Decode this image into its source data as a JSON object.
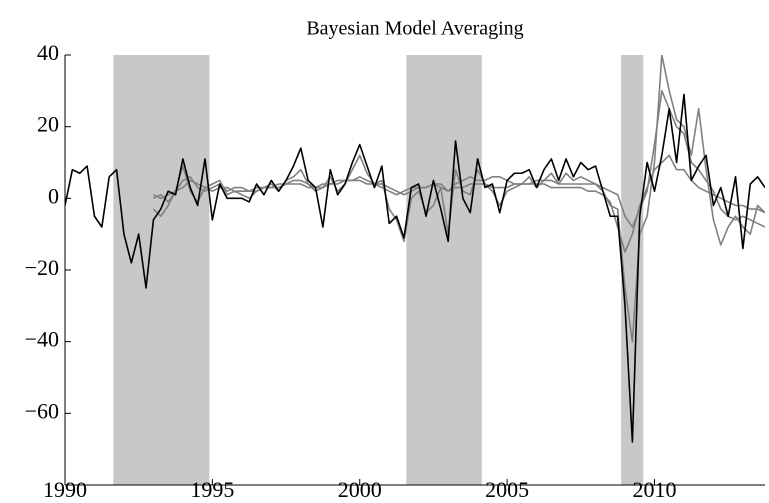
{
  "chart_data": {
    "type": "line",
    "title": "Bayesian Model Averaging",
    "x": [
      1990,
      1990.25,
      1990.5,
      1990.75,
      1991,
      1991.25,
      1991.5,
      1991.75,
      1992,
      1992.25,
      1992.5,
      1992.75,
      1993,
      1993.25,
      1993.5,
      1993.75,
      1994,
      1994.25,
      1994.5,
      1994.75,
      1995,
      1995.25,
      1995.5,
      1995.75,
      1996,
      1996.25,
      1996.5,
      1996.75,
      1997,
      1997.25,
      1997.5,
      1997.75,
      1998,
      1998.25,
      1998.5,
      1998.75,
      1999,
      1999.25,
      1999.5,
      1999.75,
      2000,
      2000.25,
      2000.5,
      2000.75,
      2001,
      2001.25,
      2001.5,
      2001.75,
      2002,
      2002.25,
      2002.5,
      2002.75,
      2003,
      2003.25,
      2003.5,
      2003.75,
      2004,
      2004.25,
      2004.5,
      2004.75,
      2005,
      2005.25,
      2005.5,
      2005.75,
      2006,
      2006.25,
      2006.5,
      2006.75,
      2007,
      2007.25,
      2007.5,
      2007.75,
      2008,
      2008.25,
      2008.5,
      2008.75,
      2009,
      2009.25,
      2009.5,
      2009.75,
      2010,
      2010.25,
      2010.5,
      2010.75,
      2011,
      2011.25,
      2011.5,
      2011.75,
      2012,
      2012.25,
      2012.5,
      2012.75,
      2013,
      2013.25,
      2013.5,
      2013.75
    ],
    "series": [
      {
        "color": "#808080",
        "values": [
          null,
          null,
          null,
          null,
          null,
          null,
          null,
          null,
          null,
          null,
          null,
          null,
          1,
          0,
          1,
          2,
          3,
          5,
          4,
          3,
          2,
          3,
          3,
          2,
          2,
          2,
          3,
          3,
          3,
          3,
          4,
          4,
          4,
          3,
          3,
          4,
          4,
          5,
          5,
          5,
          5,
          4,
          4,
          3,
          2,
          1,
          2,
          3,
          3,
          3,
          4,
          3,
          2,
          3,
          3,
          4,
          4,
          4,
          3,
          3,
          3,
          4,
          4,
          4,
          4,
          4,
          3,
          3,
          3,
          3,
          3,
          2,
          2,
          1,
          -1,
          -8,
          -15,
          -10,
          -2,
          3,
          8,
          10,
          12,
          8,
          8,
          5,
          3,
          2,
          1,
          0,
          -1,
          -2,
          -2,
          -3,
          -3,
          -4
        ]
      },
      {
        "color": "#808080",
        "values": [
          null,
          null,
          null,
          null,
          null,
          null,
          null,
          null,
          null,
          null,
          null,
          null,
          -3,
          -5,
          -2,
          2,
          9,
          2,
          -1,
          3,
          4,
          5,
          1,
          2,
          1,
          0,
          2,
          3,
          4,
          2,
          5,
          6,
          8,
          4,
          2,
          3,
          6,
          2,
          4,
          8,
          12,
          7,
          4,
          5,
          -3,
          -6,
          -12,
          0,
          2,
          -4,
          -2,
          3,
          -10,
          8,
          2,
          1,
          8,
          4,
          2,
          -2,
          2,
          3,
          4,
          6,
          3,
          5,
          7,
          4,
          7,
          5,
          6,
          5,
          4,
          2,
          -2,
          -3,
          -25,
          -40,
          -10,
          -5,
          10,
          40,
          30,
          22,
          20,
          12,
          25,
          8,
          -6,
          -13,
          -8,
          -5,
          -8,
          -10,
          -2,
          -4
        ]
      },
      {
        "color": "#808080",
        "values": [
          null,
          null,
          null,
          null,
          null,
          null,
          null,
          null,
          null,
          null,
          null,
          null,
          0,
          1,
          -1,
          2,
          5,
          6,
          3,
          2,
          3,
          4,
          2,
          3,
          3,
          2,
          2,
          3,
          3,
          4,
          4,
          5,
          5,
          4,
          3,
          3,
          4,
          4,
          5,
          5,
          6,
          5,
          4,
          4,
          3,
          2,
          1,
          2,
          3,
          3,
          4,
          4,
          2,
          4,
          5,
          6,
          5,
          5,
          6,
          6,
          5,
          4,
          4,
          4,
          5,
          5,
          5,
          4,
          4,
          4,
          4,
          4,
          4,
          3,
          2,
          1,
          -5,
          -8,
          -3,
          2,
          15,
          30,
          25,
          20,
          18,
          10,
          8,
          5,
          2,
          -3,
          -5,
          -6,
          -5,
          -6,
          -7,
          -8
        ]
      },
      {
        "color": "#000000",
        "values": [
          -2,
          8,
          7,
          9,
          -5,
          -8,
          6,
          8,
          -10,
          -18,
          -10,
          -25,
          -6,
          -3,
          2,
          1,
          11,
          3,
          -2,
          11,
          -6,
          4,
          0,
          0,
          0,
          -1,
          4,
          1,
          5,
          2,
          5,
          9,
          14,
          5,
          3,
          -8,
          8,
          1,
          4,
          10,
          15,
          9,
          3,
          9,
          -7,
          -5,
          -11,
          3,
          4,
          -5,
          5,
          -3,
          -12,
          16,
          0,
          -4,
          11,
          3,
          4,
          -4,
          5,
          7,
          7,
          8,
          3,
          8,
          11,
          5,
          11,
          6,
          10,
          8,
          9,
          2,
          -5,
          -5,
          -30,
          -68,
          -5,
          10,
          2,
          12,
          25,
          10,
          29,
          5,
          9,
          12,
          -2,
          3,
          -5,
          6,
          -14,
          4,
          6,
          3
        ]
      }
    ],
    "shaded_regions": [
      {
        "start": 1991.64,
        "end": 1994.9
      },
      {
        "start": 2001.58,
        "end": 2004.14
      },
      {
        "start": 2008.87,
        "end": 2009.62
      }
    ],
    "shade_color": "#c8c8c8",
    "xlim": [
      1990,
      2013.75
    ],
    "ylim": [
      -80,
      40
    ],
    "xticks": [
      1990,
      1995,
      2000,
      2005,
      2010
    ],
    "yticks": [
      {
        "value": -60,
        "label": "−60"
      },
      {
        "value": -40,
        "label": "−40"
      },
      {
        "value": -20,
        "label": "−20"
      },
      0,
      20,
      40
    ]
  }
}
